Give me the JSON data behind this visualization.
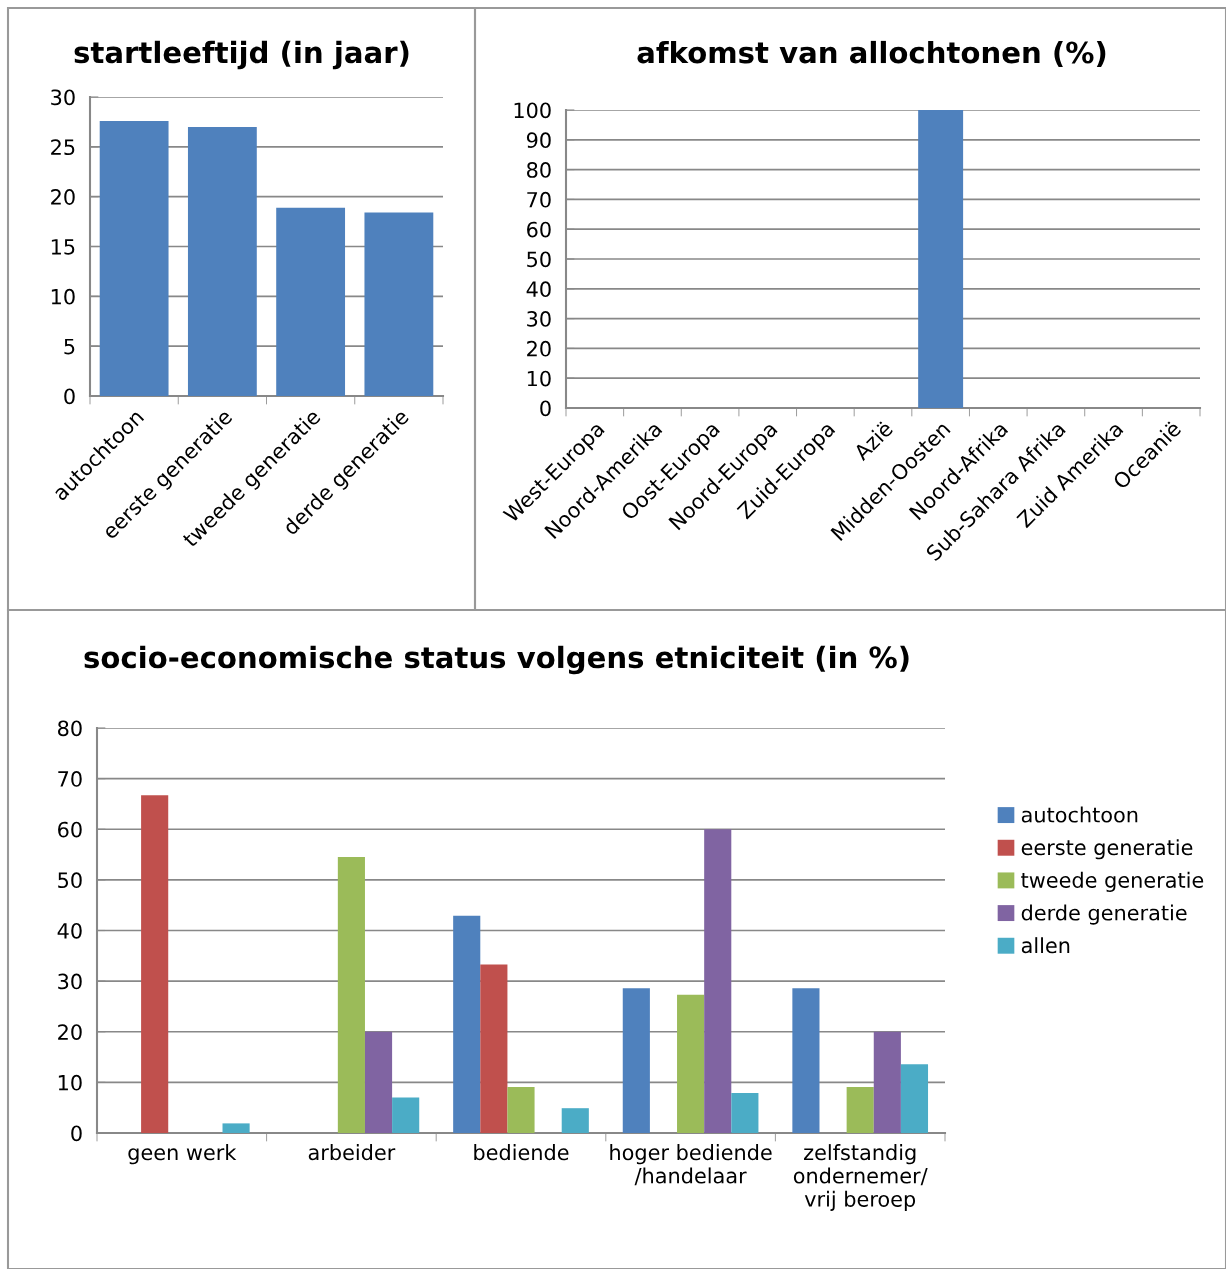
{
  "chart_data": [
    {
      "type": "bar",
      "title": "startleeftijd (in jaar)",
      "categories": [
        "autochtoon",
        "eerste generatie",
        "tweede generatie",
        "derde generatie"
      ],
      "values": [
        27.6,
        27.0,
        18.9,
        18.4
      ],
      "color": "#4f81bd",
      "ylim": [
        0,
        30
      ],
      "yticks": [
        0,
        5,
        10,
        15,
        20,
        25,
        30
      ],
      "grid": "y",
      "legend": false
    },
    {
      "type": "bar",
      "title": "afkomst van allochtonen (%)",
      "categories": [
        "West-Europa",
        "Noord-Amerika",
        "Oost-Europa",
        "Noord-Europa",
        "Zuid-Europa",
        "Azië",
        "Midden-Oosten",
        "Noord-Afrika",
        "Sub-Sahara Afrika",
        "Zuid Amerika",
        "Oceanië"
      ],
      "values": [
        0,
        0,
        0,
        0,
        0,
        0,
        100,
        0,
        0,
        0,
        0
      ],
      "color": "#4f81bd",
      "ylim": [
        0,
        100
      ],
      "yticks": [
        0,
        10,
        20,
        30,
        40,
        50,
        60,
        70,
        80,
        90,
        100
      ],
      "grid": "y",
      "legend": false
    },
    {
      "type": "bar",
      "title": "socio-economische status volgens etniciteit (in %)",
      "categories": [
        "geen werk",
        "arbeider",
        "bediende",
        "hoger bediende\n/handelaar",
        "zelfstandig\nondernemer/\nvrij beroep"
      ],
      "ylim": [
        0,
        80
      ],
      "yticks": [
        0,
        10,
        20,
        30,
        40,
        50,
        60,
        70,
        80
      ],
      "grid": "y",
      "legend": "right",
      "series": [
        {
          "name": "autochtoon",
          "color": "#4f81bd",
          "values": [
            0,
            0,
            42.9,
            28.6,
            28.6
          ]
        },
        {
          "name": "eerste generatie",
          "color": "#c0504d",
          "values": [
            66.7,
            0,
            33.3,
            0,
            0
          ]
        },
        {
          "name": "tweede generatie",
          "color": "#9bbb59",
          "values": [
            0,
            54.5,
            9.1,
            27.3,
            9.1
          ]
        },
        {
          "name": "derde generatie",
          "color": "#8064a2",
          "values": [
            0,
            20,
            0,
            60,
            20
          ]
        },
        {
          "name": "allen",
          "color": "#4bacc6",
          "values": [
            1.9,
            7.0,
            4.9,
            7.9,
            13.6
          ]
        }
      ]
    }
  ]
}
